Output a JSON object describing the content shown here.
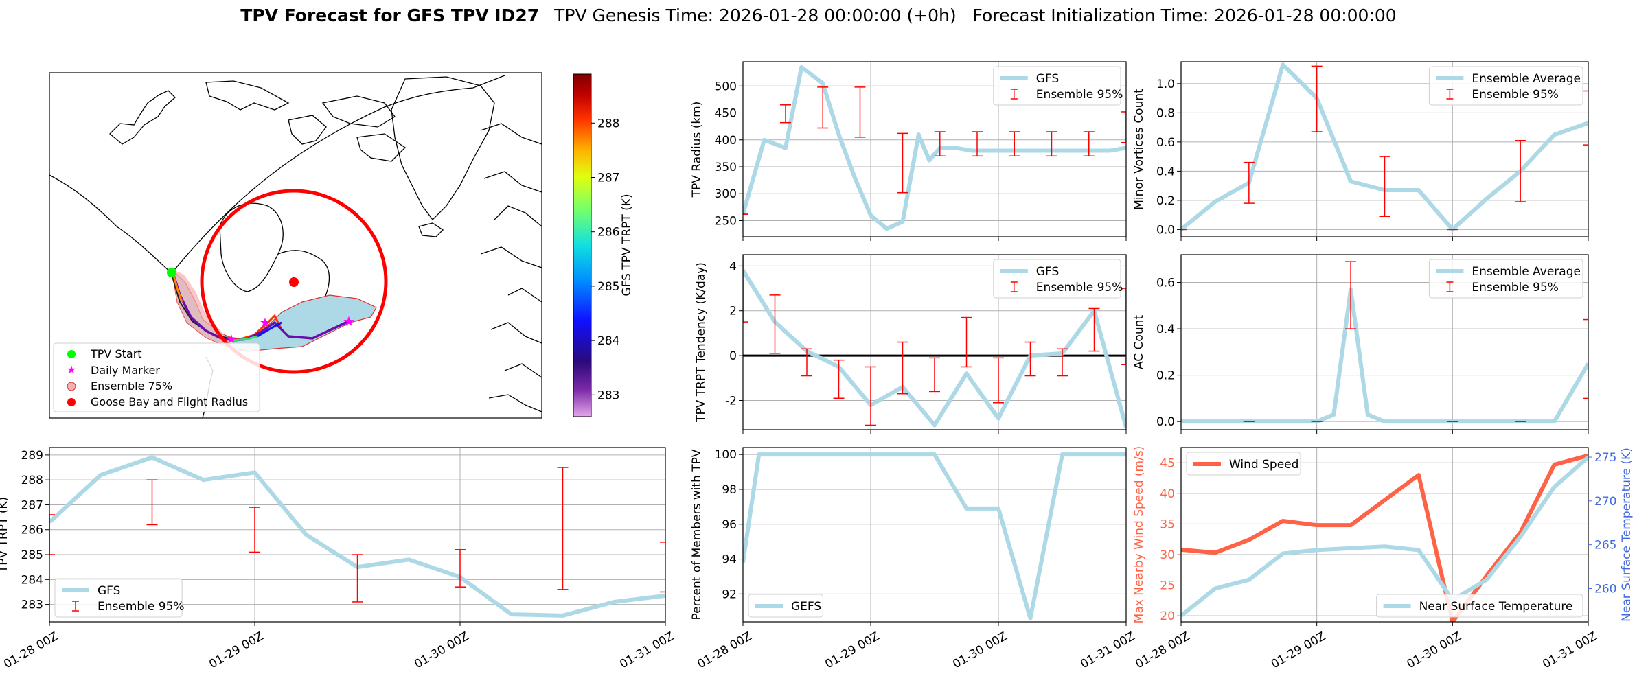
{
  "title": {
    "bold": "TPV Forecast for GFS TPV ID27",
    "rest": "TPV Genesis Time: 2026-01-28 00:00:00 (+0h)   Forecast Initialization Time: 2026-01-28 00:00:00"
  },
  "colors": {
    "gfs_line": "#add8e6",
    "error_bar": "#ff0000",
    "wind": "#ff6347",
    "temp_axis": "#4169e1",
    "grid": "#b0b0b0",
    "map_track": "#6a0dad",
    "tpv_start": "#00ff00",
    "daily_marker": "#ff00ff",
    "goose_bay": "#ff0000",
    "ensemble_fill": "#add8e6"
  },
  "map": {
    "legend": [
      "TPV Start",
      "Daily Marker",
      "Ensemble 75%",
      "Goose Bay and Flight Radius"
    ],
    "colorbar": {
      "label": "GFS TPV TRPT (K)",
      "ticks": [
        "283",
        "284",
        "285",
        "286",
        "287",
        "288"
      ],
      "range": [
        282.6,
        288.9
      ],
      "colormap": "jet"
    }
  },
  "xticks": [
    "01-28 00Z",
    "01-29 00Z",
    "01-30 00Z",
    "01-31 00Z"
  ],
  "chart_data": [
    {
      "id": "trpt",
      "type": "line",
      "ylabel": "TPV TRPT (K)",
      "ylim": [
        282.3,
        289.3
      ],
      "yticks": [
        283,
        284,
        285,
        286,
        287,
        288,
        289
      ],
      "legend_loc": "lower-left",
      "grid": true,
      "x": [
        0,
        6,
        12,
        18,
        24,
        30,
        36,
        42,
        48,
        54,
        60,
        66,
        72
      ],
      "series": [
        {
          "name": "GFS",
          "values": [
            286.3,
            288.2,
            288.9,
            288.0,
            288.3,
            285.8,
            284.5,
            284.8,
            284.1,
            282.6,
            282.55,
            283.1,
            283.35
          ]
        }
      ],
      "error_bars": {
        "name": "Ensemble 95%",
        "x": [
          0,
          12,
          24,
          36,
          48,
          60,
          72
        ],
        "low": [
          285.0,
          286.2,
          285.1,
          283.1,
          283.7,
          283.6,
          283.5
        ],
        "high": [
          286.6,
          288.0,
          286.9,
          285.0,
          285.2,
          288.5,
          285.5
        ]
      }
    },
    {
      "id": "radius",
      "type": "line",
      "ylabel": "TPV Radius (km)",
      "ylim": [
        220,
        545
      ],
      "yticks": [
        250,
        300,
        350,
        400,
        450,
        500
      ],
      "legend_loc": "top-right",
      "grid": true,
      "x": [
        0,
        4,
        8,
        11,
        15,
        18,
        21,
        24,
        27,
        30,
        33,
        35,
        37,
        40,
        43,
        46,
        48,
        51,
        53,
        55,
        58,
        61,
        64,
        69,
        72
      ],
      "series": [
        {
          "name": "GFS",
          "values": [
            262,
            400,
            385,
            535,
            505,
            410,
            330,
            260,
            235,
            248,
            410,
            362,
            385,
            385,
            380,
            380,
            380,
            380,
            380,
            380,
            380,
            380,
            380,
            380,
            385
          ]
        }
      ],
      "error_bars": {
        "name": "Ensemble 95%",
        "x": [
          0,
          8,
          15,
          22,
          30,
          37,
          44,
          51,
          58,
          65,
          72
        ],
        "low": [
          262,
          432,
          422,
          405,
          302,
          370,
          370,
          370,
          370,
          370,
          395
        ],
        "high": [
          262,
          465,
          498,
          498,
          412,
          415,
          415,
          415,
          415,
          415,
          452
        ]
      }
    },
    {
      "id": "minor",
      "type": "line",
      "ylabel": "Minor Vortices Count",
      "ylim": [
        -0.05,
        1.15
      ],
      "yticks": [
        0.0,
        0.2,
        0.4,
        0.6,
        0.8,
        1.0
      ],
      "legend_loc": "top-right",
      "grid": true,
      "x": [
        0,
        6,
        12,
        18,
        24,
        30,
        36,
        42,
        48,
        54,
        60,
        66,
        72
      ],
      "series": [
        {
          "name": "Ensemble Average",
          "values": [
            0.0,
            0.19,
            0.32,
            1.13,
            0.9,
            0.33,
            0.27,
            0.27,
            0.0,
            0.21,
            0.4,
            0.65,
            0.73
          ]
        }
      ],
      "error_bars": {
        "name": "Ensemble 95%",
        "x": [
          0,
          12,
          24,
          36,
          48,
          60,
          72
        ],
        "low": [
          0.0,
          0.18,
          0.67,
          0.09,
          0.0,
          0.19,
          0.58
        ],
        "high": [
          0.0,
          0.46,
          1.12,
          0.5,
          0.0,
          0.61,
          0.95
        ]
      }
    },
    {
      "id": "tendency",
      "type": "line",
      "ylabel": "TPV TRPT Tendency (K/day)",
      "ylim": [
        -3.3,
        4.5
      ],
      "yticks": [
        -2,
        0,
        2,
        4
      ],
      "zero_line": true,
      "legend_loc": "top-right",
      "grid": true,
      "x": [
        0,
        6,
        12,
        18,
        24,
        30,
        36,
        42,
        48,
        54,
        60,
        66,
        72
      ],
      "series": [
        {
          "name": "GFS",
          "values": [
            3.8,
            1.5,
            0.2,
            -0.5,
            -2.2,
            -1.4,
            -3.1,
            -0.8,
            -2.8,
            0.0,
            0.1,
            2.0,
            -3.2
          ]
        }
      ],
      "error_bars": {
        "name": "Ensemble 95%",
        "x": [
          0,
          6,
          12,
          18,
          24,
          30,
          36,
          42,
          48,
          54,
          60,
          66,
          72
        ],
        "low": [
          1.5,
          0.1,
          -0.9,
          -1.9,
          -3.1,
          -1.7,
          -1.6,
          -0.5,
          -2.1,
          -0.9,
          -0.9,
          0.2,
          -0.4
        ],
        "high": [
          5.0,
          2.7,
          0.3,
          -0.2,
          -0.5,
          0.6,
          -0.1,
          1.7,
          -0.1,
          0.6,
          0.3,
          2.1,
          3.0
        ]
      }
    },
    {
      "id": "ac",
      "type": "line",
      "ylabel": "AC Count",
      "ylim": [
        -0.035,
        0.72
      ],
      "yticks": [
        0.0,
        0.2,
        0.4,
        0.6
      ],
      "legend_loc": "top-right",
      "grid": true,
      "x": [
        0,
        6,
        12,
        18,
        24,
        27,
        30,
        33,
        36,
        42,
        48,
        54,
        60,
        66,
        72
      ],
      "series": [
        {
          "name": "Ensemble Average",
          "values": [
            0.0,
            0.0,
            0.0,
            0.0,
            0.0,
            0.03,
            0.57,
            0.03,
            0.0,
            0.0,
            0.0,
            0.0,
            0.0,
            0.0,
            0.25
          ]
        }
      ],
      "error_bars": {
        "name": "Ensemble 95%",
        "x": [
          12,
          24,
          30,
          48,
          60,
          72
        ],
        "low": [
          0.0,
          0.0,
          0.4,
          0.0,
          0.0,
          0.1
        ],
        "high": [
          0.0,
          0.0,
          0.69,
          0.0,
          0.0,
          0.44
        ]
      }
    },
    {
      "id": "members",
      "type": "line",
      "ylabel": "Percent of Members with TPV",
      "ylim": [
        90.4,
        100.4
      ],
      "yticks": [
        92,
        94,
        96,
        98,
        100
      ],
      "legend_loc": "lower-left",
      "grid": true,
      "x": [
        0,
        3,
        6,
        12,
        18,
        24,
        30,
        36,
        42,
        48,
        54,
        60,
        66,
        72
      ],
      "series": [
        {
          "name": "GEFS",
          "values": [
            93.8,
            100,
            100,
            100,
            100,
            100,
            100,
            100,
            96.9,
            96.9,
            90.6,
            100,
            100,
            100
          ]
        }
      ]
    },
    {
      "id": "wind_temp",
      "type": "line",
      "ylabel": "Max Nearby Wind Speed (m/s)",
      "ylabel_right": "Near Surface Temperature (K)",
      "ylim": [
        19,
        47.5
      ],
      "yticks": [
        20,
        25,
        30,
        35,
        40,
        45
      ],
      "ylim_right": [
        256.2,
        276.1
      ],
      "yticks_right": [
        260,
        265,
        270,
        275
      ],
      "legend_loc": "top-left",
      "legend_loc_right": "lower-right",
      "grid": true,
      "x": [
        0,
        6,
        12,
        18,
        24,
        30,
        36,
        42,
        48,
        54,
        60,
        66,
        72
      ],
      "series": [
        {
          "name": "Wind Speed",
          "values": [
            30.8,
            30.3,
            32.4,
            35.5,
            34.8,
            34.8,
            38.9,
            43.0,
            19.0,
            26.5,
            33.6,
            44.7,
            46.2
          ]
        },
        {
          "name": "Near Surface Temperature",
          "axis": "right",
          "values": [
            256.9,
            260.0,
            261.0,
            264.0,
            264.4,
            264.6,
            264.8,
            264.4,
            258.7,
            261.0,
            265.9,
            271.6,
            275.0
          ]
        }
      ]
    }
  ]
}
